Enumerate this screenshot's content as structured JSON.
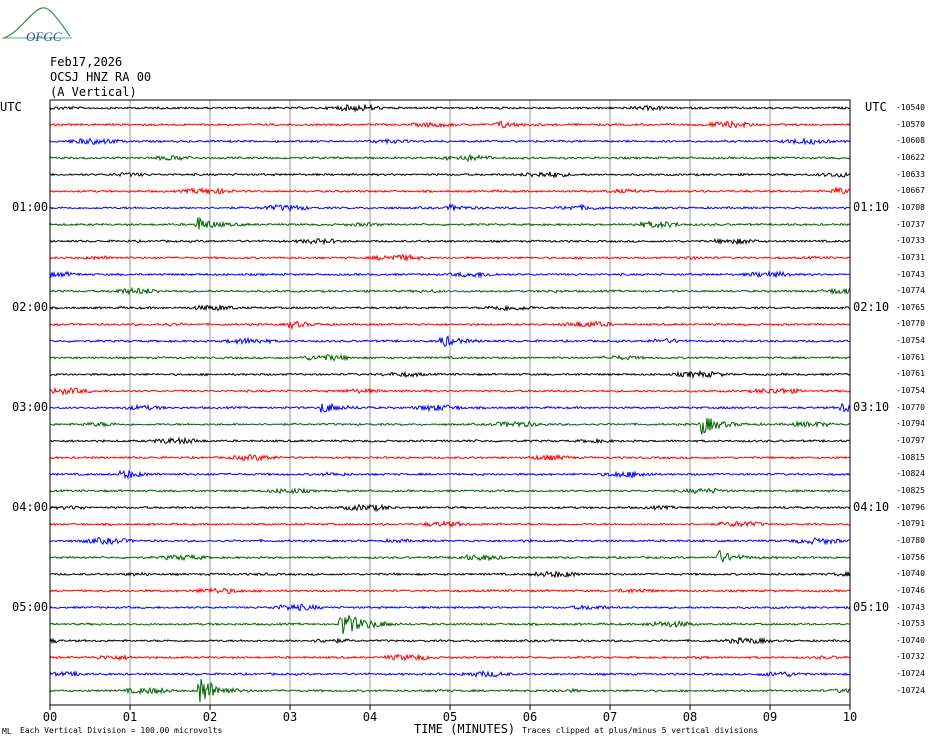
{
  "header": {
    "logo_text": "OFGC",
    "date": "Feb17,2026",
    "station": "OCSJ HNZ RA 00",
    "component": "(A Vertical)"
  },
  "left_axis": {
    "corner_label": "UTC",
    "hour_labels": [
      {
        "label": "01:00",
        "row": 6
      },
      {
        "label": "02:00",
        "row": 12
      },
      {
        "label": "03:00",
        "row": 18
      },
      {
        "label": "04:00",
        "row": 24
      },
      {
        "label": "05:00",
        "row": 30
      }
    ]
  },
  "right_axis": {
    "corner_label": "UTC",
    "hour_labels": [
      {
        "label": "01:10",
        "row": 6
      },
      {
        "label": "02:10",
        "row": 12
      },
      {
        "label": "03:10",
        "row": 18
      },
      {
        "label": "04:10",
        "row": 24
      },
      {
        "label": "05:10",
        "row": 30
      }
    ]
  },
  "chart_data": {
    "type": "line",
    "title": "",
    "xlabel": "TIME (MINUTES)",
    "ylabel": "",
    "x_ticks": [
      "00",
      "01",
      "02",
      "03",
      "04",
      "05",
      "06",
      "07",
      "08",
      "09",
      "10"
    ],
    "xlim": [
      0,
      10
    ],
    "grid": true,
    "trace_colors": [
      "#000000",
      "#ff0000",
      "#0000ff",
      "#006400"
    ],
    "trace_values": [
      -10540,
      -10570,
      -10608,
      -10622,
      -10633,
      -10667,
      -10708,
      -10737,
      -10733,
      -10731,
      -10743,
      -10774,
      -10765,
      -10770,
      -10754,
      -10761,
      -10761,
      -10754,
      -10770,
      -10794,
      -10797,
      -10815,
      -10824,
      -10825,
      -10796,
      -10791,
      -10780,
      -10756,
      -10740,
      -10746,
      -10743,
      -10753,
      -10740,
      -10732,
      -10724,
      -10724
    ],
    "events": [
      {
        "row": 7,
        "minute": 1.85,
        "amp": 7
      },
      {
        "row": 14,
        "minute": 4.9,
        "amp": 6
      },
      {
        "row": 18,
        "minute": 3.4,
        "amp": 6
      },
      {
        "row": 18,
        "minute": 9.9,
        "amp": 4
      },
      {
        "row": 19,
        "minute": 8.15,
        "amp": 10
      },
      {
        "row": 22,
        "minute": 0.9,
        "amp": 5
      },
      {
        "row": 27,
        "minute": 8.35,
        "amp": 7
      },
      {
        "row": 31,
        "minute": 3.65,
        "amp": 14
      },
      {
        "row": 35,
        "minute": 1.88,
        "amp": 16
      },
      {
        "row": 6,
        "minute": 5.0,
        "amp": 3
      },
      {
        "row": 1,
        "minute": 5.6,
        "amp": 4
      },
      {
        "row": 5,
        "minute": 9.8,
        "amp": 4
      },
      {
        "row": 13,
        "minute": 3.0,
        "amp": 3
      }
    ]
  },
  "footer": {
    "scale_note": "Each Vertical Division =  100.00 microvolts",
    "clip_note": "Traces clipped at plus/minus 5 vertical divisions",
    "corner_mark": "ML"
  }
}
